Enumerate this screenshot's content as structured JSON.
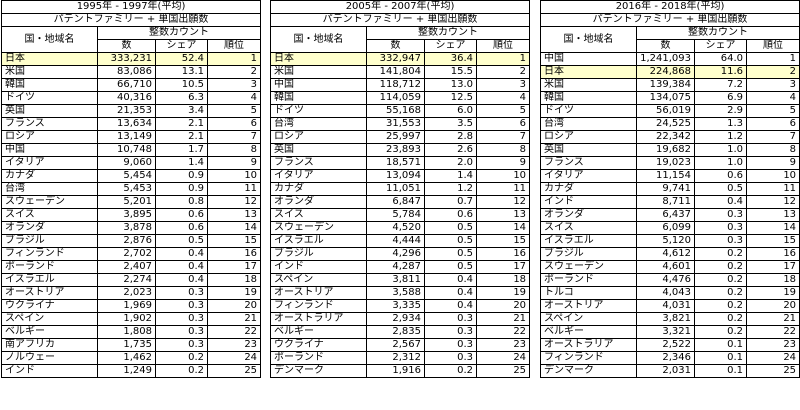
{
  "panels": [
    {
      "period": "1995年 - 1997年(平均)",
      "subtitle": "パテントファミリー + 単国出願数",
      "group_header": "整数カウント",
      "headers": {
        "country": "国・地域名",
        "count": "数",
        "share": "シェア",
        "rank": "順位"
      },
      "highlight": "日本",
      "rows": [
        {
          "country": "日本",
          "count": "333,231",
          "share": "52.4",
          "rank": "1"
        },
        {
          "country": "米国",
          "count": "83,086",
          "share": "13.1",
          "rank": "2"
        },
        {
          "country": "韓国",
          "count": "66,710",
          "share": "10.5",
          "rank": "3"
        },
        {
          "country": "ドイツ",
          "count": "40,316",
          "share": "6.3",
          "rank": "4"
        },
        {
          "country": "英国",
          "count": "21,353",
          "share": "3.4",
          "rank": "5"
        },
        {
          "country": "フランス",
          "count": "13,634",
          "share": "2.1",
          "rank": "6"
        },
        {
          "country": "ロシア",
          "count": "13,149",
          "share": "2.1",
          "rank": "7"
        },
        {
          "country": "中国",
          "count": "10,748",
          "share": "1.7",
          "rank": "8"
        },
        {
          "country": "イタリア",
          "count": "9,060",
          "share": "1.4",
          "rank": "9"
        },
        {
          "country": "カナダ",
          "count": "5,454",
          "share": "0.9",
          "rank": "10"
        },
        {
          "country": "台湾",
          "count": "5,453",
          "share": "0.9",
          "rank": "11"
        },
        {
          "country": "スウェーデン",
          "count": "5,201",
          "share": "0.8",
          "rank": "12"
        },
        {
          "country": "スイス",
          "count": "3,895",
          "share": "0.6",
          "rank": "13"
        },
        {
          "country": "オランダ",
          "count": "3,878",
          "share": "0.6",
          "rank": "14"
        },
        {
          "country": "ブラジル",
          "count": "2,876",
          "share": "0.5",
          "rank": "15"
        },
        {
          "country": "フィンランド",
          "count": "2,702",
          "share": "0.4",
          "rank": "16"
        },
        {
          "country": "ポーランド",
          "count": "2,407",
          "share": "0.4",
          "rank": "17"
        },
        {
          "country": "イスラエル",
          "count": "2,274",
          "share": "0.4",
          "rank": "18"
        },
        {
          "country": "オーストリア",
          "count": "2,023",
          "share": "0.3",
          "rank": "19"
        },
        {
          "country": "ウクライナ",
          "count": "1,969",
          "share": "0.3",
          "rank": "20"
        },
        {
          "country": "スペイン",
          "count": "1,902",
          "share": "0.3",
          "rank": "21"
        },
        {
          "country": "ベルギー",
          "count": "1,808",
          "share": "0.3",
          "rank": "22"
        },
        {
          "country": "南アフリカ",
          "count": "1,735",
          "share": "0.3",
          "rank": "23"
        },
        {
          "country": "ノルウェー",
          "count": "1,462",
          "share": "0.2",
          "rank": "24"
        },
        {
          "country": "インド",
          "count": "1,249",
          "share": "0.2",
          "rank": "25"
        }
      ]
    },
    {
      "period": "2005年 - 2007年(平均)",
      "subtitle": "パテントファミリー + 単国出願数",
      "group_header": "整数カウント",
      "headers": {
        "country": "国・地域名",
        "count": "数",
        "share": "シェア",
        "rank": "順位"
      },
      "highlight": "日本",
      "rows": [
        {
          "country": "日本",
          "count": "332,947",
          "share": "36.4",
          "rank": "1"
        },
        {
          "country": "米国",
          "count": "141,804",
          "share": "15.5",
          "rank": "2"
        },
        {
          "country": "中国",
          "count": "118,712",
          "share": "13.0",
          "rank": "3"
        },
        {
          "country": "韓国",
          "count": "114,059",
          "share": "12.5",
          "rank": "4"
        },
        {
          "country": "ドイツ",
          "count": "55,168",
          "share": "6.0",
          "rank": "5"
        },
        {
          "country": "台湾",
          "count": "31,553",
          "share": "3.5",
          "rank": "6"
        },
        {
          "country": "ロシア",
          "count": "25,997",
          "share": "2.8",
          "rank": "7"
        },
        {
          "country": "英国",
          "count": "23,893",
          "share": "2.6",
          "rank": "8"
        },
        {
          "country": "フランス",
          "count": "18,571",
          "share": "2.0",
          "rank": "9"
        },
        {
          "country": "イタリア",
          "count": "13,094",
          "share": "1.4",
          "rank": "10"
        },
        {
          "country": "カナダ",
          "count": "11,051",
          "share": "1.2",
          "rank": "11"
        },
        {
          "country": "オランダ",
          "count": "6,847",
          "share": "0.7",
          "rank": "12"
        },
        {
          "country": "スイス",
          "count": "5,784",
          "share": "0.6",
          "rank": "13"
        },
        {
          "country": "スウェーデン",
          "count": "4,520",
          "share": "0.5",
          "rank": "14"
        },
        {
          "country": "イスラエル",
          "count": "4,444",
          "share": "0.5",
          "rank": "15"
        },
        {
          "country": "ブラジル",
          "count": "4,296",
          "share": "0.5",
          "rank": "16"
        },
        {
          "country": "インド",
          "count": "4,287",
          "share": "0.5",
          "rank": "17"
        },
        {
          "country": "スペイン",
          "count": "3,811",
          "share": "0.4",
          "rank": "18"
        },
        {
          "country": "オーストリア",
          "count": "3,588",
          "share": "0.4",
          "rank": "19"
        },
        {
          "country": "フィンランド",
          "count": "3,335",
          "share": "0.4",
          "rank": "20"
        },
        {
          "country": "オーストラリア",
          "count": "2,934",
          "share": "0.3",
          "rank": "21"
        },
        {
          "country": "ベルギー",
          "count": "2,835",
          "share": "0.3",
          "rank": "22"
        },
        {
          "country": "ウクライナ",
          "count": "2,567",
          "share": "0.3",
          "rank": "23"
        },
        {
          "country": "ポーランド",
          "count": "2,312",
          "share": "0.3",
          "rank": "24"
        },
        {
          "country": "デンマーク",
          "count": "1,916",
          "share": "0.2",
          "rank": "25"
        }
      ]
    },
    {
      "period": "2016年 - 2018年(平均)",
      "subtitle": "パテントファミリー + 単国出願数",
      "group_header": "整数カウント",
      "headers": {
        "country": "国・地域名",
        "count": "数",
        "share": "シェア",
        "rank": "順位"
      },
      "highlight": "日本",
      "rows": [
        {
          "country": "中国",
          "count": "1,241,093",
          "share": "64.0",
          "rank": "1"
        },
        {
          "country": "日本",
          "count": "224,868",
          "share": "11.6",
          "rank": "2"
        },
        {
          "country": "米国",
          "count": "139,384",
          "share": "7.2",
          "rank": "3"
        },
        {
          "country": "韓国",
          "count": "134,075",
          "share": "6.9",
          "rank": "4"
        },
        {
          "country": "ドイツ",
          "count": "56,019",
          "share": "2.9",
          "rank": "5"
        },
        {
          "country": "台湾",
          "count": "24,525",
          "share": "1.3",
          "rank": "6"
        },
        {
          "country": "ロシア",
          "count": "22,342",
          "share": "1.2",
          "rank": "7"
        },
        {
          "country": "英国",
          "count": "19,682",
          "share": "1.0",
          "rank": "8"
        },
        {
          "country": "フランス",
          "count": "19,023",
          "share": "1.0",
          "rank": "9"
        },
        {
          "country": "イタリア",
          "count": "11,154",
          "share": "0.6",
          "rank": "10"
        },
        {
          "country": "カナダ",
          "count": "9,741",
          "share": "0.5",
          "rank": "11"
        },
        {
          "country": "インド",
          "count": "8,711",
          "share": "0.4",
          "rank": "12"
        },
        {
          "country": "オランダ",
          "count": "6,437",
          "share": "0.3",
          "rank": "13"
        },
        {
          "country": "スイス",
          "count": "6,099",
          "share": "0.3",
          "rank": "14"
        },
        {
          "country": "イスラエル",
          "count": "5,120",
          "share": "0.3",
          "rank": "15"
        },
        {
          "country": "ブラジル",
          "count": "4,612",
          "share": "0.2",
          "rank": "16"
        },
        {
          "country": "スウェーデン",
          "count": "4,601",
          "share": "0.2",
          "rank": "17"
        },
        {
          "country": "ポーランド",
          "count": "4,476",
          "share": "0.2",
          "rank": "18"
        },
        {
          "country": "トルコ",
          "count": "4,043",
          "share": "0.2",
          "rank": "19"
        },
        {
          "country": "オーストリア",
          "count": "4,031",
          "share": "0.2",
          "rank": "20"
        },
        {
          "country": "スペイン",
          "count": "3,821",
          "share": "0.2",
          "rank": "21"
        },
        {
          "country": "ベルギー",
          "count": "3,321",
          "share": "0.2",
          "rank": "22"
        },
        {
          "country": "オーストラリア",
          "count": "2,522",
          "share": "0.1",
          "rank": "23"
        },
        {
          "country": "フィンランド",
          "count": "2,346",
          "share": "0.1",
          "rank": "24"
        },
        {
          "country": "デンマーク",
          "count": "2,031",
          "share": "0.1",
          "rank": "25"
        }
      ]
    }
  ],
  "colors": {
    "highlight_row": "#ffffcc",
    "border": "#000000",
    "background": "#ffffff"
  }
}
